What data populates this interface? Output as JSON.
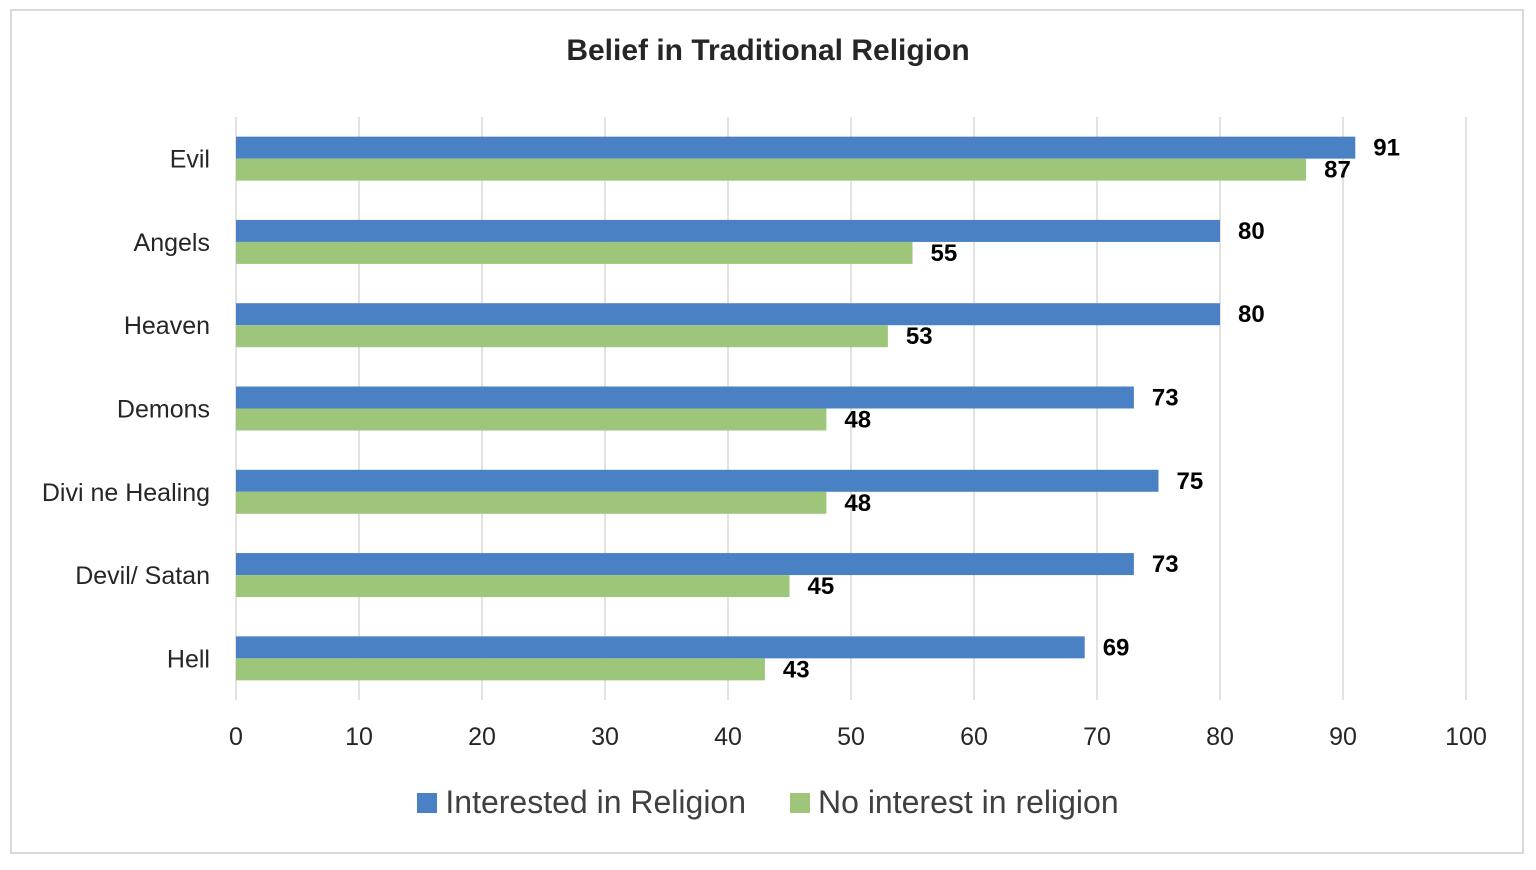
{
  "chart_data": {
    "type": "bar",
    "orientation": "horizontal",
    "title": "Belief in Traditional Religion",
    "categories": [
      "Evil",
      "Angels",
      "Heaven",
      "Demons",
      "Divine Healing",
      "Devil/Satan",
      "Hell"
    ],
    "category_labels": [
      "Evil",
      "Angels",
      "Heaven",
      "Demons",
      "Divi ne Healing",
      "Devil/ Satan",
      "Hell"
    ],
    "series": [
      {
        "name": "Interested in Religion",
        "color": "#4a81c4",
        "values": [
          91,
          80,
          80,
          73,
          75,
          73,
          69
        ]
      },
      {
        "name": "No interest in religion",
        "color": "#9dc67a",
        "values": [
          87,
          55,
          53,
          48,
          48,
          45,
          43
        ]
      }
    ],
    "xlim": [
      0,
      100
    ],
    "xticks": [
      0,
      10,
      20,
      30,
      40,
      50,
      60,
      70,
      80,
      90,
      100
    ],
    "grid": "vertical",
    "legend_position": "bottom",
    "data_labels": true
  }
}
